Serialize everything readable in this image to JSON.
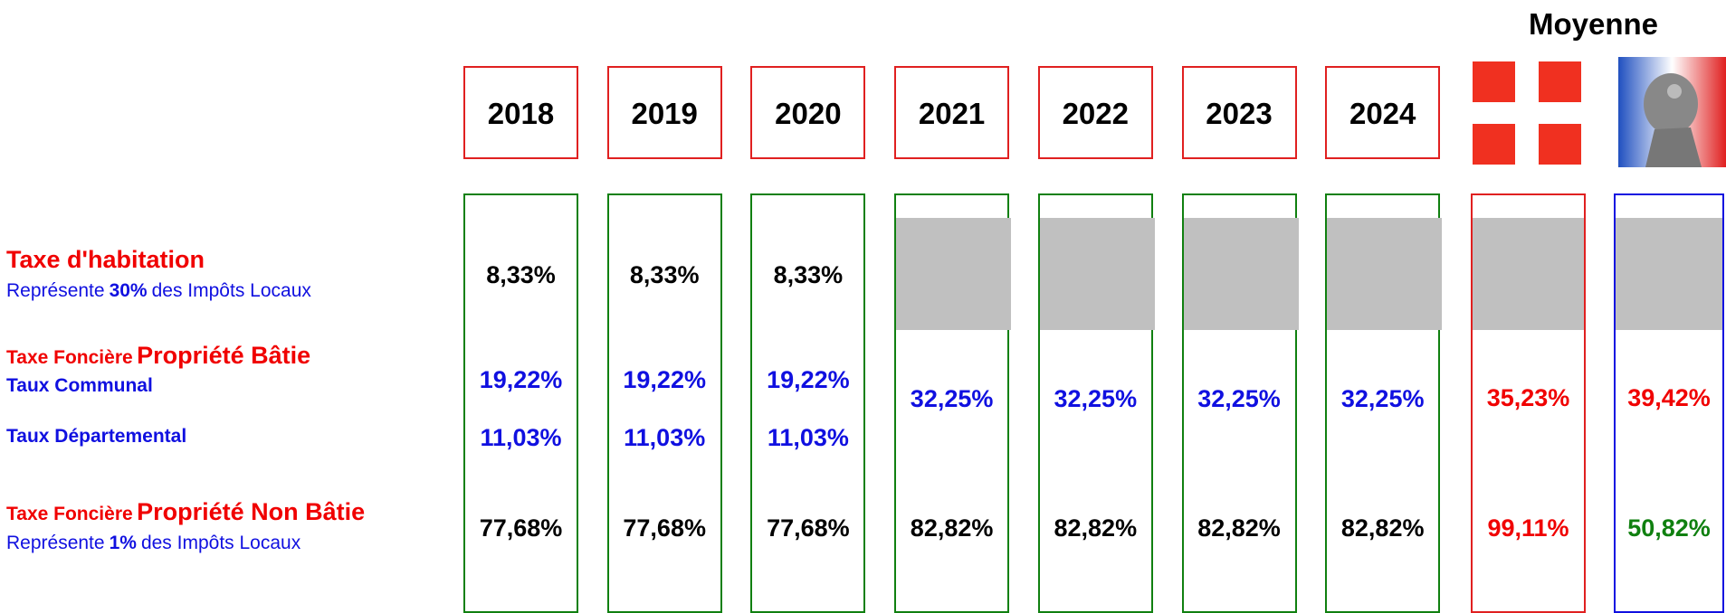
{
  "heading": "Moyenne",
  "labels": {
    "th": {
      "title": "Taxe d'habitation",
      "note": {
        "before": "Représente",
        "bold": "30%",
        "after": "des Impôts Locaux"
      }
    },
    "tfpb": {
      "prefix": "Taxe Foncière",
      "title": "Propriété Bâtie",
      "communal": "Taux Communal",
      "departemental": "Taux Départemental"
    },
    "tfpnb": {
      "prefix": "Taxe Foncière",
      "title": "Propriété Non Bâtie",
      "note": {
        "before": "Représente",
        "bold": "1%",
        "after": "des Impôts Locaux"
      }
    }
  },
  "columns": [
    {
      "year": "2018",
      "th": "8,33%",
      "communal": "19,22%",
      "departemental": "11,03%",
      "tfpnb": "77,68%"
    },
    {
      "year": "2019",
      "th": "8,33%",
      "communal": "19,22%",
      "departemental": "11,03%",
      "tfpnb": "77,68%"
    },
    {
      "year": "2020",
      "th": "8,33%",
      "communal": "19,22%",
      "departemental": "11,03%",
      "tfpnb": "77,68%"
    },
    {
      "year": "2021",
      "tfpb": "32,25%",
      "tfpnb": "82,82%"
    },
    {
      "year": "2022",
      "tfpb": "32,25%",
      "tfpnb": "82,82%"
    },
    {
      "year": "2023",
      "tfpb": "32,25%",
      "tfpnb": "82,82%"
    },
    {
      "year": "2024",
      "tfpb": "32,25%",
      "tfpnb": "82,82%"
    }
  ],
  "averages": [
    {
      "tfpb": "35,23%",
      "tfpnb": "99,11%"
    },
    {
      "tfpb": "39,42%",
      "tfpnb": "50,82%"
    }
  ]
}
